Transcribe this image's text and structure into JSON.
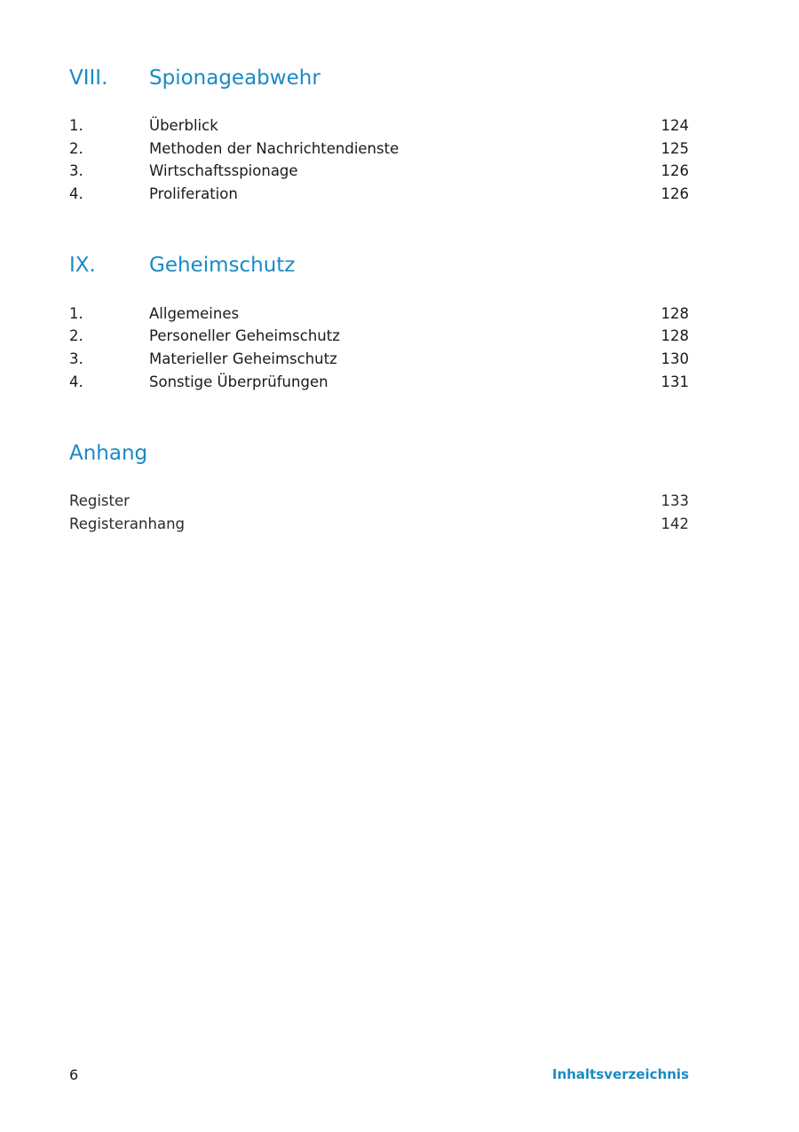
{
  "sections": [
    {
      "number": "VIII.",
      "title": "Spionageabwehr",
      "items": [
        {
          "number": "1.",
          "title": "Überblick",
          "page": "124"
        },
        {
          "number": "2.",
          "title": "Methoden der Nachrichtendienste",
          "page": "125"
        },
        {
          "number": "3.",
          "title": "Wirtschaftsspionage",
          "page": "126"
        },
        {
          "number": "4.",
          "title": "Proliferation",
          "page": "126"
        }
      ]
    },
    {
      "number": "IX.",
      "title": "Geheimschutz",
      "items": [
        {
          "number": "1.",
          "title": "Allgemeines",
          "page": "128"
        },
        {
          "number": "2.",
          "title": "Personeller Geheimschutz",
          "page": "128"
        },
        {
          "number": "3.",
          "title": "Materieller Geheimschutz",
          "page": "130"
        },
        {
          "number": "4.",
          "title": "Sonstige Überprüfungen",
          "page": "131"
        }
      ]
    }
  ],
  "appendix": {
    "title": "Anhang",
    "items": [
      {
        "title": "Register",
        "page": "133"
      },
      {
        "title": "Registeranhang",
        "page": "142"
      }
    ]
  },
  "footer": {
    "page_number": "6",
    "title": "Inhaltsverzeichnis"
  },
  "colors": {
    "accent": "#1a8ac4"
  }
}
